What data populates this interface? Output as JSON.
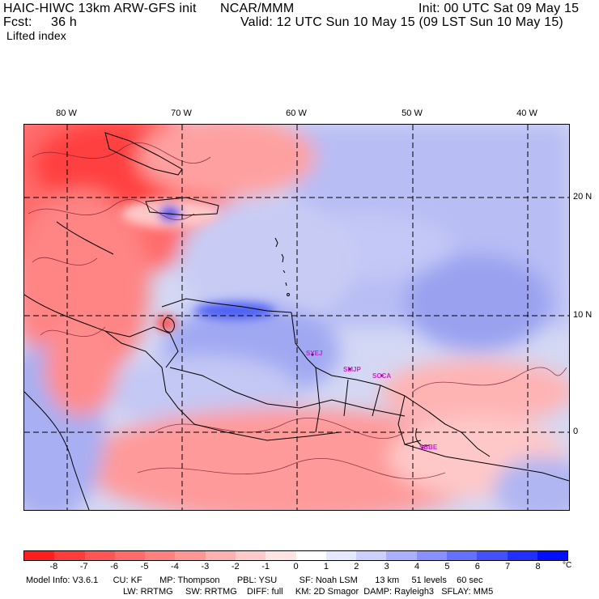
{
  "header": {
    "model_title": "HAIC-HIWC 13km ARW-GFS init",
    "center": "NCAR/MMM",
    "init_label": "Init: 00 UTC Sat 09 May 15",
    "fcst_label": "Fcst:",
    "fcst_value": "36 h",
    "valid_label": "Valid: 12 UTC Sun 10 May 15 (09 LST Sun 10 May 15)",
    "field_name": "Lifted index"
  },
  "map": {
    "lon_labels": [
      "80 W",
      "70 W",
      "60 W",
      "50 W",
      "40 W"
    ],
    "lat_labels": [
      "20 N",
      "10 N",
      "0"
    ],
    "stations": [
      "SYEJ",
      "SMJP",
      "SOCA",
      "SBBE"
    ]
  },
  "colorbar": {
    "ticks": [
      "-8",
      "-7",
      "-6",
      "-5",
      "-4",
      "-3",
      "-2",
      "-1",
      "0",
      "1",
      "2",
      "3",
      "4",
      "5",
      "6",
      "7",
      "8"
    ],
    "unit": "°C",
    "colors": [
      "#ff1e1e",
      "#ff3c3c",
      "#ff5555",
      "#ff6a6a",
      "#ff8080",
      "#ff9696",
      "#ffb0b0",
      "#ffcaca",
      "#ffe4e4",
      "#ffffff",
      "#e6e8ff",
      "#ccd0ff",
      "#aab0ff",
      "#8890ff",
      "#6670ff",
      "#4450ff",
      "#2230ff",
      "#0010ff"
    ]
  },
  "footer": {
    "line1": "Model Info: V3.6.1      CU: KF       MP: Thompson       PBL: YSU         SF: Noah LSM       13 km     51 levels    60 sec",
    "line2": "LW: RRTMG     SW: RRTMG    DIFF: full     KM: 2D Smagor  DAMP: Rayleigh3   SFLAY: MM5"
  }
}
